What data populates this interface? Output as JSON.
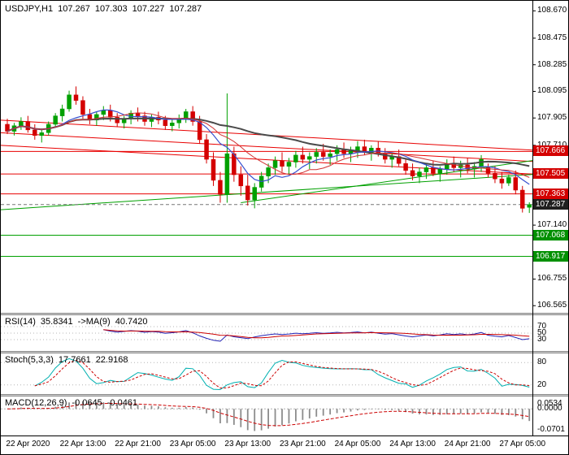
{
  "header": {
    "symbol_period": "USDJPY,H1",
    "open": "107.267",
    "high": "107.303",
    "low": "107.227",
    "close": "107.287"
  },
  "price_axis": {
    "ticks": [
      {
        "label": "108.670",
        "price": 108.67
      },
      {
        "label": "108.475",
        "price": 108.475
      },
      {
        "label": "108.285",
        "price": 108.285
      },
      {
        "label": "108.095",
        "price": 108.095
      },
      {
        "label": "107.905",
        "price": 107.905
      },
      {
        "label": "107.710",
        "price": 107.71
      },
      {
        "label": "107.140",
        "price": 107.14
      },
      {
        "label": "106.755",
        "price": 106.755
      },
      {
        "label": "106.565",
        "price": 106.565
      }
    ],
    "badges": [
      {
        "label": "107.666",
        "price": 107.666,
        "color": "#d40000"
      },
      {
        "label": "107.505",
        "price": 107.505,
        "color": "#d40000"
      },
      {
        "label": "107.363",
        "price": 107.363,
        "color": "#d40000"
      },
      {
        "label": "107.287",
        "price": 107.287,
        "color": "#1f1f1f"
      },
      {
        "label": "107.068",
        "price": 107.068,
        "color": "#009000"
      },
      {
        "label": "106.917",
        "price": 106.917,
        "color": "#009000"
      }
    ]
  },
  "indicators": {
    "rsi": {
      "name": "RSI(14)",
      "value": "35.8341",
      "ma_name": "->MA(9)",
      "ma_value": "40.7420",
      "period": 14,
      "ma_period": 9,
      "levels": [
        {
          "label": "70",
          "value": 70
        },
        {
          "label": "50",
          "value": 50
        },
        {
          "label": "30",
          "value": 30
        }
      ]
    },
    "stoch": {
      "name": "Stoch(5,3,3)",
      "value": "17.7661",
      "signal_value": "22.9168",
      "k_period": 5,
      "d_period": 3,
      "slowing": 3,
      "levels": [
        {
          "label": "80",
          "value": 80
        },
        {
          "label": "20",
          "value": 20
        }
      ]
    },
    "macd": {
      "name": "MACD(12,26,9)",
      "value": "-0.0645",
      "signal_value": "-0.0461",
      "fast": 12,
      "slow": 26,
      "signal": 9,
      "scale_labels": {
        "top": "0.0534",
        "zero": "0.0000",
        "bottom": "-0.0701"
      }
    }
  },
  "chart_data": {
    "type": "candlestick",
    "symbol": "USDJPY",
    "timeframe": "H1",
    "title": "USDJPY,H1 107.267 107.303 107.227 107.287",
    "current_ohlc": {
      "open": 107.267,
      "high": 107.303,
      "low": 107.227,
      "close": 107.287
    },
    "current_price": 107.287,
    "price_range": {
      "min": 106.514,
      "max": 108.73
    },
    "x_labels": [
      "22 Apr 2020",
      "22 Apr 13:00",
      "22 Apr 21:00",
      "23 Apr 05:00",
      "23 Apr 13:00",
      "23 Apr 21:00",
      "24 Apr 05:00",
      "24 Apr 13:00",
      "24 Apr 21:00",
      "27 Apr 05:00"
    ],
    "first_label_bar": 3,
    "label_step_bars": 8,
    "candles": [
      [
        107.86,
        107.9,
        107.79,
        107.81
      ],
      [
        107.81,
        107.87,
        107.78,
        107.85
      ],
      [
        107.85,
        107.91,
        107.82,
        107.88
      ],
      [
        107.88,
        107.92,
        107.8,
        107.82
      ],
      [
        107.82,
        107.86,
        107.75,
        107.78
      ],
      [
        107.78,
        107.83,
        107.73,
        107.8
      ],
      [
        107.8,
        107.88,
        107.78,
        107.86
      ],
      [
        107.86,
        107.94,
        107.84,
        107.92
      ],
      [
        107.92,
        108.0,
        107.88,
        107.97
      ],
      [
        107.97,
        108.1,
        107.95,
        108.07
      ],
      [
        108.07,
        108.13,
        108.0,
        108.03
      ],
      [
        108.03,
        108.06,
        107.9,
        107.93
      ],
      [
        107.93,
        107.97,
        107.86,
        107.89
      ],
      [
        107.89,
        107.95,
        107.85,
        107.93
      ],
      [
        107.93,
        107.99,
        107.89,
        107.96
      ],
      [
        107.96,
        108.0,
        107.88,
        107.91
      ],
      [
        107.91,
        107.94,
        107.84,
        107.87
      ],
      [
        107.87,
        107.92,
        107.83,
        107.9
      ],
      [
        107.9,
        107.96,
        107.86,
        107.94
      ],
      [
        107.94,
        107.98,
        107.88,
        107.92
      ],
      [
        107.92,
        107.95,
        107.85,
        107.88
      ],
      [
        107.88,
        107.93,
        107.84,
        107.91
      ],
      [
        107.91,
        107.95,
        107.86,
        107.89
      ],
      [
        107.89,
        107.92,
        107.82,
        107.85
      ],
      [
        107.85,
        107.9,
        107.81,
        107.87
      ],
      [
        107.87,
        107.93,
        107.83,
        107.9
      ],
      [
        107.9,
        107.97,
        107.87,
        107.95
      ],
      [
        107.95,
        107.99,
        107.85,
        107.88
      ],
      [
        107.88,
        107.92,
        107.72,
        107.75
      ],
      [
        107.75,
        107.79,
        107.58,
        107.61
      ],
      [
        107.61,
        107.66,
        107.42,
        107.46
      ],
      [
        107.46,
        107.52,
        107.3,
        107.36
      ],
      [
        107.36,
        108.08,
        107.3,
        107.65
      ],
      [
        107.65,
        107.7,
        107.45,
        107.5
      ],
      [
        107.5,
        107.56,
        107.35,
        107.42
      ],
      [
        107.42,
        107.5,
        107.28,
        107.32
      ],
      [
        107.32,
        107.44,
        107.26,
        107.41
      ],
      [
        107.41,
        107.52,
        107.38,
        107.49
      ],
      [
        107.49,
        107.58,
        107.44,
        107.55
      ],
      [
        107.55,
        107.63,
        107.5,
        107.6
      ],
      [
        107.6,
        107.66,
        107.52,
        107.56
      ],
      [
        107.56,
        107.62,
        107.5,
        107.59
      ],
      [
        107.59,
        107.67,
        107.55,
        107.64
      ],
      [
        107.64,
        107.7,
        107.58,
        107.61
      ],
      [
        107.61,
        107.66,
        107.54,
        107.63
      ],
      [
        107.63,
        107.69,
        107.58,
        107.66
      ],
      [
        107.66,
        107.72,
        107.6,
        107.63
      ],
      [
        107.63,
        107.68,
        107.57,
        107.65
      ],
      [
        107.65,
        107.71,
        107.6,
        107.68
      ],
      [
        107.68,
        107.73,
        107.62,
        107.65
      ],
      [
        107.65,
        107.7,
        107.59,
        107.67
      ],
      [
        107.67,
        107.74,
        107.62,
        107.7
      ],
      [
        107.7,
        107.75,
        107.64,
        107.66
      ],
      [
        107.66,
        107.71,
        107.6,
        107.69
      ],
      [
        107.69,
        107.74,
        107.63,
        107.65
      ],
      [
        107.65,
        107.69,
        107.58,
        107.61
      ],
      [
        107.61,
        107.66,
        107.55,
        107.63
      ],
      [
        107.63,
        107.68,
        107.56,
        107.58
      ],
      [
        107.58,
        107.62,
        107.5,
        107.53
      ],
      [
        107.53,
        107.58,
        107.46,
        107.49
      ],
      [
        107.49,
        107.55,
        107.44,
        107.52
      ],
      [
        107.52,
        107.58,
        107.47,
        107.55
      ],
      [
        107.55,
        107.6,
        107.49,
        107.51
      ],
      [
        107.51,
        107.56,
        107.45,
        107.54
      ],
      [
        107.54,
        107.61,
        107.5,
        107.58
      ],
      [
        107.58,
        107.63,
        107.52,
        107.55
      ],
      [
        107.55,
        107.6,
        107.48,
        107.57
      ],
      [
        107.57,
        107.62,
        107.51,
        107.54
      ],
      [
        107.54,
        107.59,
        107.48,
        107.56
      ],
      [
        107.56,
        107.64,
        107.52,
        107.61
      ],
      [
        107.55,
        107.58,
        107.48,
        107.51
      ],
      [
        107.51,
        107.56,
        107.44,
        107.47
      ],
      [
        107.47,
        107.52,
        107.4,
        107.44
      ],
      [
        107.44,
        107.5,
        107.42,
        107.48
      ],
      [
        107.48,
        107.53,
        107.36,
        107.39
      ],
      [
        107.39,
        107.42,
        107.23,
        107.26
      ],
      [
        107.267,
        107.303,
        107.227,
        107.287
      ]
    ],
    "levels": [
      {
        "price": 107.666,
        "color": "#e80000"
      },
      {
        "price": 107.505,
        "color": "#e80000"
      },
      {
        "price": 107.363,
        "color": "#e80000"
      },
      {
        "price": 107.068,
        "color": "#00a000"
      },
      {
        "price": 106.917,
        "color": "#00a000"
      }
    ],
    "trendlines": [
      {
        "b1": -1,
        "p1": 107.89,
        "b2": 82,
        "p2": 107.66,
        "color": "#e80000"
      },
      {
        "b1": -1,
        "p1": 107.8,
        "b2": 82,
        "p2": 107.58,
        "color": "#e80000"
      },
      {
        "b1": -1,
        "p1": 107.71,
        "b2": 82,
        "p2": 107.49,
        "color": "#e80000"
      },
      {
        "b1": -1,
        "p1": 107.25,
        "b2": 82,
        "p2": 107.52,
        "color": "#00a000"
      },
      {
        "b1": 34,
        "p1": 107.3,
        "b2": 82,
        "p2": 107.64,
        "color": "#00a000"
      }
    ],
    "moving_averages": [
      {
        "period": 34,
        "color": "#4a4a4a",
        "width": 2
      },
      {
        "period": 8,
        "color": "#3850d0",
        "width": 1.2
      },
      {
        "period": 13,
        "color": "#d23232",
        "width": 1
      }
    ]
  },
  "colors": {
    "background": "#ffffff",
    "bull": "#00a000",
    "bear": "#d40000",
    "current_price_line": "#777777",
    "rsi_line": "#2323b4",
    "rsi_ma": "#cc0000",
    "stoch_main": "#00b0b0",
    "stoch_signal": "#cc0000",
    "macd_hist": "#8c8c8c",
    "macd_signal": "#cc0000",
    "level_dotted": "#b4b4b4",
    "separator": "#d0d0d0",
    "frame": "#000000"
  }
}
